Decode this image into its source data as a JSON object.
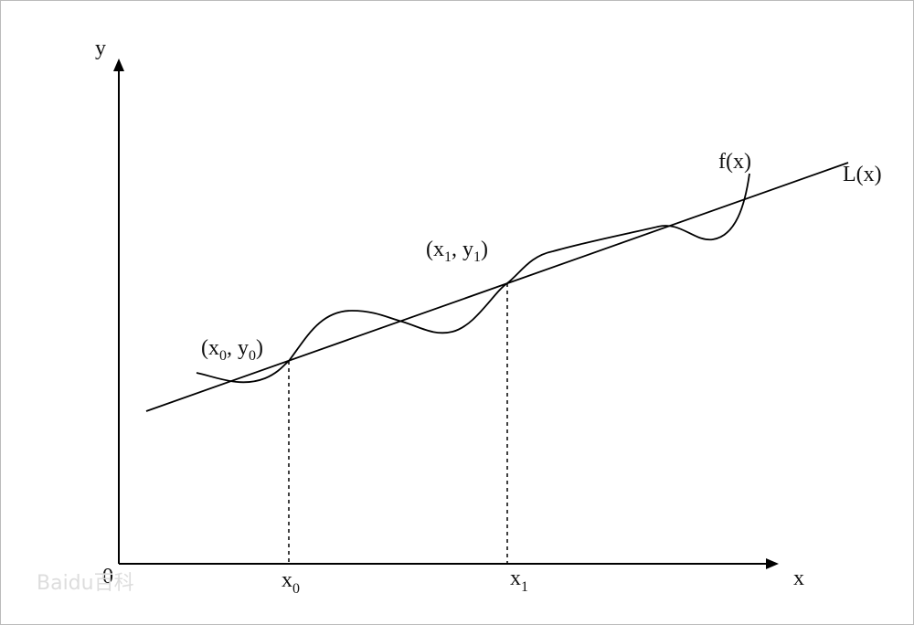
{
  "axes": {
    "y_label": "y",
    "x_label": "x",
    "origin": "0"
  },
  "ticks": [
    {
      "base": "x",
      "sub": "0"
    },
    {
      "base": "x",
      "sub": "1"
    }
  ],
  "points": [
    {
      "parts": [
        "(x",
        "0",
        ", y",
        "0",
        ")"
      ]
    },
    {
      "parts": [
        "(x",
        "1",
        ", y",
        "1",
        ")"
      ]
    }
  ],
  "curves": {
    "f": "f(x)",
    "L": "L(x)"
  },
  "watermark": "Baidu百科"
}
